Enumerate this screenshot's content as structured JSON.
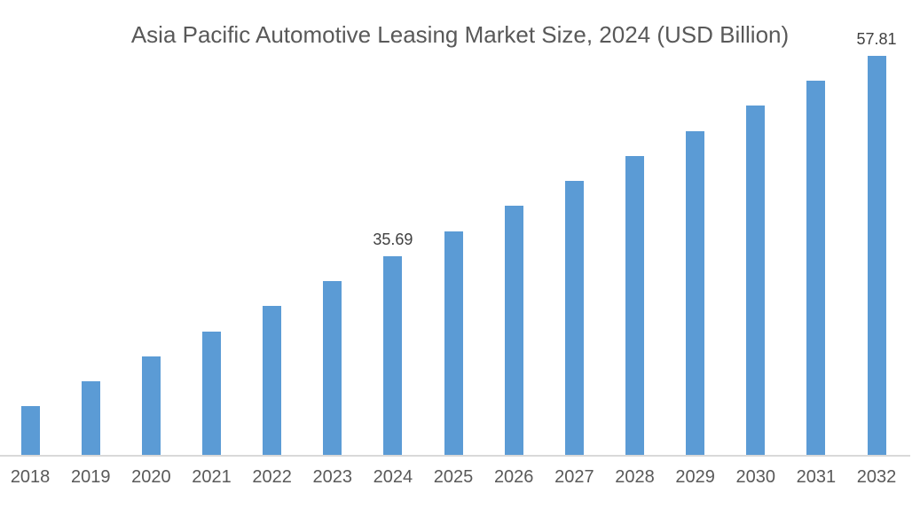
{
  "title": "Asia Pacific Automotive Leasing Market Size, 2024 (USD Billion)",
  "chart_data": {
    "type": "bar",
    "title": "Asia Pacific Automotive Leasing Market Size, 2024 (USD Billion)",
    "categories": [
      "2018",
      "2019",
      "2020",
      "2021",
      "2022",
      "2023",
      "2024",
      "2025",
      "2026",
      "2027",
      "2028",
      "2029",
      "2030",
      "2031",
      "2032"
    ],
    "values": [
      19.1,
      21.87,
      24.63,
      27.4,
      30.16,
      32.93,
      35.69,
      38.46,
      41.22,
      43.99,
      46.75,
      49.52,
      52.28,
      55.05,
      57.81
    ],
    "data_labels": {
      "2024": "35.69",
      "2032": "57.81"
    },
    "xlabel": "",
    "ylabel": "",
    "ylim": [
      13.75,
      58.3
    ],
    "grid": false,
    "legend": false,
    "colors": {
      "bar": "#5B9BD5",
      "title_text": "#595959",
      "tick_text": "#595959",
      "data_label_text": "#404040",
      "axis_line": "#D9D9D9",
      "background": "#FFFFFF"
    }
  }
}
